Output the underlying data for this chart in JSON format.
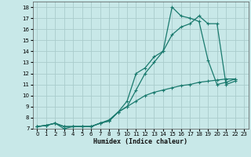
{
  "xlabel": "Humidex (Indice chaleur)",
  "background_color": "#c8e8e8",
  "grid_color": "#aacccc",
  "line_color": "#1a7a6e",
  "xlim": [
    -0.5,
    23.5
  ],
  "ylim": [
    7,
    18.5
  ],
  "xticks": [
    0,
    1,
    2,
    3,
    4,
    5,
    6,
    7,
    8,
    9,
    10,
    11,
    12,
    13,
    14,
    15,
    16,
    17,
    18,
    19,
    20,
    21,
    22,
    23
  ],
  "yticks": [
    7,
    8,
    9,
    10,
    11,
    12,
    13,
    14,
    15,
    16,
    17,
    18
  ],
  "series": [
    {
      "x": [
        0,
        1,
        2,
        3,
        4,
        5,
        6,
        7,
        8,
        9,
        10,
        11,
        12,
        13,
        14,
        15,
        16,
        17,
        18,
        19,
        20,
        21,
        22
      ],
      "y": [
        7.2,
        7.3,
        7.5,
        7.0,
        7.2,
        7.2,
        7.2,
        7.5,
        7.7,
        8.5,
        9.5,
        12.0,
        12.5,
        13.5,
        14.0,
        18.0,
        17.2,
        17.0,
        16.7,
        13.2,
        11.0,
        11.2,
        11.5
      ]
    },
    {
      "x": [
        0,
        1,
        2,
        3,
        4,
        5,
        6,
        7,
        8,
        9,
        10,
        11,
        12,
        13,
        14,
        15,
        16,
        17,
        18,
        19,
        20,
        21,
        22
      ],
      "y": [
        7.2,
        7.3,
        7.5,
        7.2,
        7.2,
        7.2,
        7.2,
        7.5,
        7.8,
        8.5,
        9.0,
        10.5,
        12.0,
        13.0,
        14.0,
        15.5,
        16.2,
        16.5,
        17.2,
        16.5,
        16.5,
        11.0,
        11.3
      ]
    },
    {
      "x": [
        0,
        1,
        2,
        3,
        4,
        5,
        6,
        7,
        8,
        9,
        10,
        11,
        12,
        13,
        14,
        15,
        16,
        17,
        18,
        19,
        20,
        21,
        22
      ],
      "y": [
        7.2,
        7.3,
        7.5,
        7.2,
        7.2,
        7.2,
        7.2,
        7.5,
        7.7,
        8.5,
        9.0,
        9.5,
        10.0,
        10.3,
        10.5,
        10.7,
        10.9,
        11.0,
        11.2,
        11.3,
        11.4,
        11.5,
        11.5
      ]
    }
  ]
}
